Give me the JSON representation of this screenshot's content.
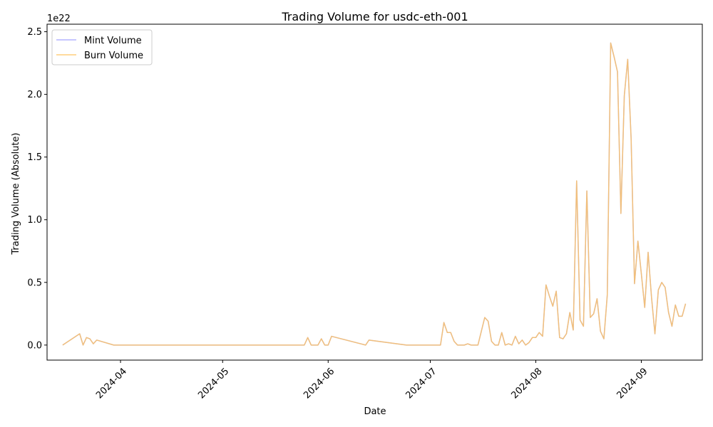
{
  "chart_data": {
    "type": "line",
    "title": "Trading Volume for usdc-eth-001",
    "xlabel": "Date",
    "ylabel": "Trading Volume (Absolute)",
    "y_offset_label": "1e22",
    "y_scale": 1e+22,
    "ylim": [
      -0.12,
      2.56
    ],
    "xlim": [
      "2024-03-10T10:00",
      "2024-09-18T22:00"
    ],
    "grid": false,
    "legend_placement": "top-left",
    "x_ticks": [
      {
        "date": "2024-04-01",
        "label": "2024-04"
      },
      {
        "date": "2024-05-01",
        "label": "2024-05"
      },
      {
        "date": "2024-06-01",
        "label": "2024-06"
      },
      {
        "date": "2024-07-01",
        "label": "2024-07"
      },
      {
        "date": "2024-08-01",
        "label": "2024-08"
      },
      {
        "date": "2024-09-01",
        "label": "2024-09"
      }
    ],
    "y_ticks": [
      {
        "value": 0.0,
        "label": "0.0"
      },
      {
        "value": 0.5,
        "label": "0.5"
      },
      {
        "value": 1.0,
        "label": "1.0"
      },
      {
        "value": 1.5,
        "label": "1.5"
      },
      {
        "value": 2.0,
        "label": "2.0"
      },
      {
        "value": 2.5,
        "label": "2.5"
      }
    ],
    "x": [
      "2024-03-15",
      "2024-03-20",
      "2024-03-21",
      "2024-03-22",
      "2024-03-23",
      "2024-03-24",
      "2024-03-25",
      "2024-03-30",
      "2024-05-25",
      "2024-05-26",
      "2024-05-27",
      "2024-05-29",
      "2024-05-30",
      "2024-05-31",
      "2024-06-01",
      "2024-06-02",
      "2024-06-12",
      "2024-06-13",
      "2024-06-24",
      "2024-07-04",
      "2024-07-05",
      "2024-07-06",
      "2024-07-07",
      "2024-07-08",
      "2024-07-09",
      "2024-07-11",
      "2024-07-12",
      "2024-07-13",
      "2024-07-15",
      "2024-07-17",
      "2024-07-18",
      "2024-07-19",
      "2024-07-20",
      "2024-07-21",
      "2024-07-22",
      "2024-07-23",
      "2024-07-24",
      "2024-07-25",
      "2024-07-26",
      "2024-07-27",
      "2024-07-28",
      "2024-07-29",
      "2024-07-30",
      "2024-07-31",
      "2024-08-01",
      "2024-08-02",
      "2024-08-03",
      "2024-08-04",
      "2024-08-05",
      "2024-08-06",
      "2024-08-07",
      "2024-08-08",
      "2024-08-09",
      "2024-08-10",
      "2024-08-11",
      "2024-08-12",
      "2024-08-13",
      "2024-08-14",
      "2024-08-15",
      "2024-08-16",
      "2024-08-17",
      "2024-08-18",
      "2024-08-19",
      "2024-08-20",
      "2024-08-21",
      "2024-08-22",
      "2024-08-23",
      "2024-08-24",
      "2024-08-25",
      "2024-08-26",
      "2024-08-27",
      "2024-08-28",
      "2024-08-29",
      "2024-08-30",
      "2024-08-31",
      "2024-09-01",
      "2024-09-02",
      "2024-09-03",
      "2024-09-04",
      "2024-09-05",
      "2024-09-06",
      "2024-09-07",
      "2024-09-08",
      "2024-09-09",
      "2024-09-10",
      "2024-09-11",
      "2024-09-12",
      "2024-09-13",
      "2024-09-14"
    ],
    "series": [
      {
        "name": "Mint Volume",
        "color": "#a0a0ff",
        "values": [
          0.0,
          0.09,
          0.0,
          0.06,
          0.05,
          0.01,
          0.04,
          0.0,
          0.0,
          0.06,
          0.0,
          0.0,
          0.05,
          0.0,
          0.0,
          0.07,
          0.0,
          0.04,
          0.0,
          0.0,
          0.18,
          0.1,
          0.1,
          0.03,
          0.0,
          0.0,
          0.01,
          0.0,
          0.0,
          0.22,
          0.19,
          0.03,
          0.0,
          0.0,
          0.1,
          0.0,
          0.01,
          0.0,
          0.07,
          0.01,
          0.04,
          0.0,
          0.02,
          0.06,
          0.06,
          0.1,
          0.07,
          0.48,
          0.39,
          0.31,
          0.43,
          0.06,
          0.05,
          0.09,
          0.26,
          0.12,
          1.31,
          0.2,
          0.15,
          1.23,
          0.22,
          0.25,
          0.37,
          0.11,
          0.05,
          0.4,
          2.41,
          2.3,
          2.18,
          1.05,
          1.99,
          2.28,
          1.65,
          0.49,
          0.83,
          0.57,
          0.3,
          0.74,
          0.38,
          0.09,
          0.44,
          0.5,
          0.46,
          0.26,
          0.15,
          0.32,
          0.23,
          0.23,
          0.33
        ]
      },
      {
        "name": "Burn Volume",
        "color": "#ffc05a",
        "values": [
          0.0,
          0.09,
          0.0,
          0.06,
          0.05,
          0.01,
          0.04,
          0.0,
          0.0,
          0.06,
          0.0,
          0.0,
          0.05,
          0.0,
          0.0,
          0.07,
          0.0,
          0.04,
          0.0,
          0.0,
          0.18,
          0.1,
          0.1,
          0.03,
          0.0,
          0.0,
          0.01,
          0.0,
          0.0,
          0.22,
          0.19,
          0.03,
          0.0,
          0.0,
          0.1,
          0.0,
          0.01,
          0.0,
          0.07,
          0.01,
          0.04,
          0.0,
          0.02,
          0.06,
          0.06,
          0.1,
          0.07,
          0.48,
          0.39,
          0.31,
          0.43,
          0.06,
          0.05,
          0.09,
          0.26,
          0.12,
          1.31,
          0.2,
          0.15,
          1.23,
          0.22,
          0.25,
          0.37,
          0.11,
          0.05,
          0.4,
          2.41,
          2.3,
          2.18,
          1.05,
          1.99,
          2.28,
          1.65,
          0.49,
          0.83,
          0.57,
          0.3,
          0.74,
          0.38,
          0.09,
          0.44,
          0.5,
          0.46,
          0.26,
          0.15,
          0.32,
          0.23,
          0.23,
          0.33
        ]
      }
    ]
  }
}
